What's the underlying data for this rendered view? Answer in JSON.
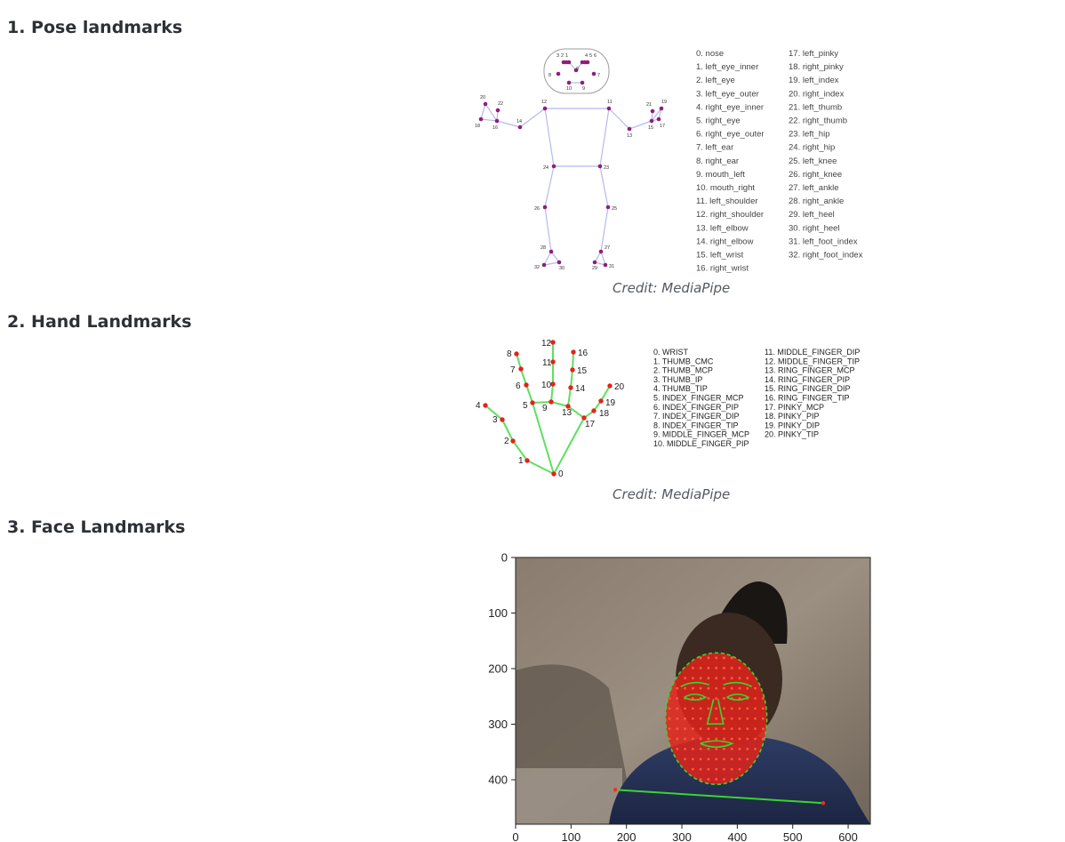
{
  "sections": [
    {
      "title": "1. Pose landmarks",
      "credit": "Credit: MediaPipe"
    },
    {
      "title": "2. Hand Landmarks",
      "credit": "Credit: MediaPipe"
    },
    {
      "title": "3. Face Landmarks"
    }
  ],
  "pose": {
    "points": [
      {
        "id": 0,
        "label": "0"
      },
      {
        "id": 1,
        "label": "1"
      },
      {
        "id": 2,
        "label": "2"
      },
      {
        "id": 3,
        "label": "3"
      },
      {
        "id": 4,
        "label": "4"
      },
      {
        "id": 5,
        "label": "5"
      },
      {
        "id": 6,
        "label": "6"
      },
      {
        "id": 7,
        "label": "7"
      },
      {
        "id": 8,
        "label": "8"
      },
      {
        "id": 9,
        "label": "9"
      },
      {
        "id": 10,
        "label": "10"
      },
      {
        "id": 11,
        "label": "11"
      },
      {
        "id": 12,
        "label": "12"
      },
      {
        "id": 13,
        "label": "13"
      },
      {
        "id": 14,
        "label": "14"
      },
      {
        "id": 15,
        "label": "15"
      },
      {
        "id": 16,
        "label": "16"
      },
      {
        "id": 17,
        "label": "17"
      },
      {
        "id": 18,
        "label": "18"
      },
      {
        "id": 19,
        "label": "19"
      },
      {
        "id": 20,
        "label": "20"
      },
      {
        "id": 21,
        "label": "21"
      },
      {
        "id": 22,
        "label": "22"
      },
      {
        "id": 23,
        "label": "23"
      },
      {
        "id": 24,
        "label": "24"
      },
      {
        "id": 25,
        "label": "25"
      },
      {
        "id": 26,
        "label": "26"
      },
      {
        "id": 27,
        "label": "27"
      },
      {
        "id": 28,
        "label": "28"
      },
      {
        "id": 29,
        "label": "29"
      },
      {
        "id": 30,
        "label": "30"
      },
      {
        "id": 31,
        "label": "31"
      },
      {
        "id": 32,
        "label": "32"
      }
    ],
    "legend": [
      "0. nose",
      "1. left_eye_inner",
      "2. left_eye",
      "3. left_eye_outer",
      "4. right_eye_inner",
      "5. right_eye",
      "6. right_eye_outer",
      "7. left_ear",
      "8. right_ear",
      "9. mouth_left",
      "10. mouth_right",
      "11. left_shoulder",
      "12. right_shoulder",
      "13. left_elbow",
      "14. right_elbow",
      "15. left_wrist",
      "16. right_wrist",
      "17. left_pinky",
      "18. right_pinky",
      "19. left_index",
      "20. right_index",
      "21. left_thumb",
      "22. right_thumb",
      "23. left_hip",
      "24. right_hip",
      "25. left_knee",
      "26. right_knee",
      "27. left_ankle",
      "28. right_ankle",
      "29. left_heel",
      "30. right_heel",
      "31. left_foot_index",
      "32. right_foot_index"
    ],
    "colors": {
      "point": "#8e1f7a",
      "line": "#b8b8f0"
    }
  },
  "hand": {
    "points": [
      {
        "id": 0,
        "label": "0"
      },
      {
        "id": 1,
        "label": "1"
      },
      {
        "id": 2,
        "label": "2"
      },
      {
        "id": 3,
        "label": "3"
      },
      {
        "id": 4,
        "label": "4"
      },
      {
        "id": 5,
        "label": "5"
      },
      {
        "id": 6,
        "label": "6"
      },
      {
        "id": 7,
        "label": "7"
      },
      {
        "id": 8,
        "label": "8"
      },
      {
        "id": 9,
        "label": "9"
      },
      {
        "id": 10,
        "label": "10"
      },
      {
        "id": 11,
        "label": "11"
      },
      {
        "id": 12,
        "label": "12"
      },
      {
        "id": 13,
        "label": "13"
      },
      {
        "id": 14,
        "label": "14"
      },
      {
        "id": 15,
        "label": "15"
      },
      {
        "id": 16,
        "label": "16"
      },
      {
        "id": 17,
        "label": "17"
      },
      {
        "id": 18,
        "label": "18"
      },
      {
        "id": 19,
        "label": "19"
      },
      {
        "id": 20,
        "label": "20"
      }
    ],
    "legend": [
      "0. WRIST",
      "1. THUMB_CMC",
      "2. THUMB_MCP",
      "3. THUMB_IP",
      "4. THUMB_TIP",
      "5. INDEX_FINGER_MCP",
      "6. INDEX_FINGER_PIP",
      "7. INDEX_FINGER_DIP",
      "8. INDEX_FINGER_TIP",
      "9. MIDDLE_FINGER_MCP",
      "10. MIDDLE_FINGER_PIP",
      "11. MIDDLE_FINGER_DIP",
      "12. MIDDLE_FINGER_TIP",
      "13. RING_FINGER_MCP",
      "14. RING_FINGER_PIP",
      "15. RING_FINGER_DIP",
      "16. RING_FINGER_TIP",
      "17. PINKY_MCP",
      "18. PINKY_PIP",
      "19. PINKY_DIP",
      "20. PINKY_TIP"
    ],
    "colors": {
      "point": "#e8201c",
      "line": "#5ee05e"
    }
  },
  "face_plot": {
    "xticks": [
      "0",
      "100",
      "200",
      "300",
      "400",
      "500",
      "600"
    ],
    "yticks": [
      "0",
      "100",
      "200",
      "300",
      "400"
    ],
    "xlim": [
      0,
      640
    ],
    "ylim": [
      0,
      480
    ],
    "line": {
      "from": [
        180,
        418
      ],
      "to": [
        555,
        442
      ]
    },
    "colors": {
      "mesh_point": "#ff2a1a",
      "mesh_line": "#39d62e",
      "skin_overlay": "#e2231a"
    }
  }
}
